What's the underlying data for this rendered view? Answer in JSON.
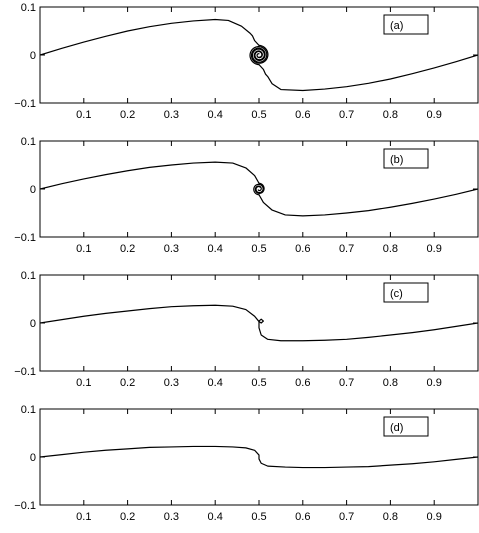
{
  "chart_data": [
    {
      "type": "line",
      "panel_label": "(a)",
      "xlim": [
        0,
        1
      ],
      "ylim": [
        -0.1,
        0.1
      ],
      "x_ticks": [
        0.1,
        0.2,
        0.3,
        0.4,
        0.5,
        0.6,
        0.7,
        0.8,
        0.9
      ],
      "x_tick_labels": [
        "0.1",
        "0.2",
        "0.3",
        "0.4",
        "0.5",
        "0.6",
        "0.7",
        "0.8",
        "0.9"
      ],
      "y_ticks": [
        -0.1,
        0,
        0.1
      ],
      "y_tick_labels": [
        "−0.1",
        "0",
        "0.1"
      ],
      "legend_position": "top-right",
      "series": [
        {
          "x": [
            0,
            0.05,
            0.1,
            0.15,
            0.2,
            0.25,
            0.3,
            0.35,
            0.4,
            0.43,
            0.46,
            0.48,
            0.485,
            0.49,
            0.5
          ],
          "y": [
            0,
            0.014,
            0.027,
            0.039,
            0.05,
            0.059,
            0.066,
            0.071,
            0.074,
            0.072,
            0.06,
            0.045,
            0.04,
            0.03,
            0.02
          ]
        },
        {
          "x": [
            0.5,
            0.51,
            0.515,
            0.52,
            0.53,
            0.55,
            0.6,
            0.65,
            0.7,
            0.75,
            0.8,
            0.85,
            0.9,
            0.95,
            1.0
          ],
          "y": [
            -0.02,
            -0.03,
            -0.04,
            -0.045,
            -0.06,
            -0.072,
            -0.074,
            -0.071,
            -0.066,
            -0.059,
            -0.05,
            -0.039,
            -0.027,
            -0.014,
            0
          ]
        }
      ],
      "spiral": {
        "center": [
          0.5,
          0
        ],
        "turns": 3.0
      }
    },
    {
      "type": "line",
      "panel_label": "(b)",
      "xlim": [
        0,
        1
      ],
      "ylim": [
        -0.1,
        0.1
      ],
      "x_ticks": [
        0.1,
        0.2,
        0.3,
        0.4,
        0.5,
        0.6,
        0.7,
        0.8,
        0.9
      ],
      "x_tick_labels": [
        "0.1",
        "0.2",
        "0.3",
        "0.4",
        "0.5",
        "0.6",
        "0.7",
        "0.8",
        "0.9"
      ],
      "y_ticks": [
        -0.1,
        0,
        0.1
      ],
      "y_tick_labels": [
        "−0.1",
        "0",
        "0.1"
      ],
      "legend_position": "top-right",
      "series": [
        {
          "x": [
            0,
            0.05,
            0.1,
            0.15,
            0.2,
            0.25,
            0.3,
            0.35,
            0.4,
            0.44,
            0.47,
            0.49,
            0.5
          ],
          "y": [
            0,
            0.011,
            0.021,
            0.03,
            0.038,
            0.045,
            0.05,
            0.054,
            0.056,
            0.054,
            0.044,
            0.028,
            0.012
          ]
        },
        {
          "x": [
            0.5,
            0.51,
            0.53,
            0.56,
            0.6,
            0.65,
            0.7,
            0.75,
            0.8,
            0.85,
            0.9,
            0.95,
            1.0
          ],
          "y": [
            -0.012,
            -0.028,
            -0.044,
            -0.054,
            -0.056,
            -0.054,
            -0.05,
            -0.045,
            -0.038,
            -0.03,
            -0.021,
            -0.011,
            0
          ]
        }
      ],
      "spiral": {
        "center": [
          0.5,
          0
        ],
        "turns": 1.6
      }
    },
    {
      "type": "line",
      "panel_label": "(c)",
      "xlim": [
        0,
        1
      ],
      "ylim": [
        -0.1,
        0.1
      ],
      "x_ticks": [
        0.1,
        0.2,
        0.3,
        0.4,
        0.5,
        0.6,
        0.7,
        0.8,
        0.9
      ],
      "x_tick_labels": [
        "0.1",
        "0.2",
        "0.3",
        "0.4",
        "0.5",
        "0.6",
        "0.7",
        "0.8",
        "0.9"
      ],
      "y_ticks": [
        -0.1,
        0,
        0.1
      ],
      "y_tick_labels": [
        "−0.1",
        "0",
        "0.1"
      ],
      "legend_position": "top-right",
      "series": [
        {
          "x": [
            0,
            0.05,
            0.1,
            0.15,
            0.2,
            0.25,
            0.3,
            0.35,
            0.4,
            0.44,
            0.47,
            0.49,
            0.5,
            0.505,
            0.51,
            0.505,
            0.5
          ],
          "y": [
            0,
            0.007,
            0.014,
            0.02,
            0.025,
            0.03,
            0.034,
            0.036,
            0.037,
            0.035,
            0.028,
            0.014,
            0.003,
            0.0,
            0.004,
            0.008,
            0.004
          ]
        },
        {
          "x": [
            0.5,
            0.5,
            0.505,
            0.52,
            0.55,
            0.6,
            0.65,
            0.7,
            0.75,
            0.8,
            0.85,
            0.9,
            0.95,
            1.0
          ],
          "y": [
            0.004,
            -0.01,
            -0.025,
            -0.034,
            -0.037,
            -0.037,
            -0.036,
            -0.034,
            -0.03,
            -0.025,
            -0.02,
            -0.014,
            -0.007,
            0
          ]
        }
      ]
    },
    {
      "type": "line",
      "panel_label": "(d)",
      "xlim": [
        0,
        1
      ],
      "ylim": [
        -0.1,
        0.1
      ],
      "x_ticks": [
        0.1,
        0.2,
        0.3,
        0.4,
        0.5,
        0.6,
        0.7,
        0.8,
        0.9
      ],
      "x_tick_labels": [
        "0.1",
        "0.2",
        "0.3",
        "0.4",
        "0.5",
        "0.6",
        "0.7",
        "0.8",
        "0.9"
      ],
      "y_ticks": [
        -0.1,
        0,
        0.1
      ],
      "y_tick_labels": [
        "−0.1",
        "0",
        "0.1"
      ],
      "legend_position": "top-right",
      "series": [
        {
          "x": [
            0,
            0.05,
            0.1,
            0.15,
            0.2,
            0.25,
            0.3,
            0.35,
            0.4,
            0.44,
            0.47,
            0.49,
            0.5,
            0.5,
            0.505,
            0.52,
            0.56,
            0.6,
            0.65,
            0.7,
            0.75,
            0.8,
            0.85,
            0.9,
            0.95,
            1.0
          ],
          "y": [
            0,
            0.005,
            0.01,
            0.014,
            0.017,
            0.02,
            0.021,
            0.022,
            0.022,
            0.021,
            0.019,
            0.014,
            0.004,
            -0.004,
            -0.013,
            -0.019,
            -0.021,
            -0.022,
            -0.022,
            -0.021,
            -0.02,
            -0.017,
            -0.014,
            -0.01,
            -0.005,
            0
          ]
        }
      ]
    }
  ]
}
